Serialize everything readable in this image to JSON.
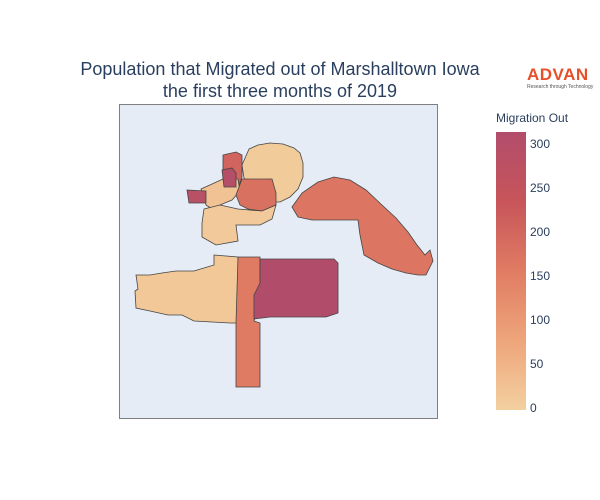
{
  "title": {
    "line1": "Population that Migrated out of Marshalltown Iowa",
    "line2": "the first three months of 2019"
  },
  "logo": {
    "brand": "ADVAN",
    "tagline": "Research through Technology"
  },
  "colorbar": {
    "title": "Migration Out",
    "ticks": [
      "300",
      "250",
      "200",
      "150",
      "100",
      "50",
      "0"
    ],
    "range": [
      0,
      315
    ],
    "colors": [
      "#f3d0a0",
      "#eea57a",
      "#e07c63",
      "#c7555a",
      "#b14d6b"
    ]
  },
  "chart_data": {
    "type": "choropleth",
    "region_values": {
      "west-nw-block": 290,
      "north-strip": 205,
      "small-magenta": 300,
      "central-orange": 180,
      "nw-pale": 25,
      "north-arc-pale": 10,
      "northeast-arm": 170,
      "east-large-block": 315,
      "south-central-strip": 160,
      "southwest-pale": 15,
      "center-pale-cells": 12
    },
    "colorscale": "sunset-like",
    "range": [
      0,
      315
    ]
  }
}
